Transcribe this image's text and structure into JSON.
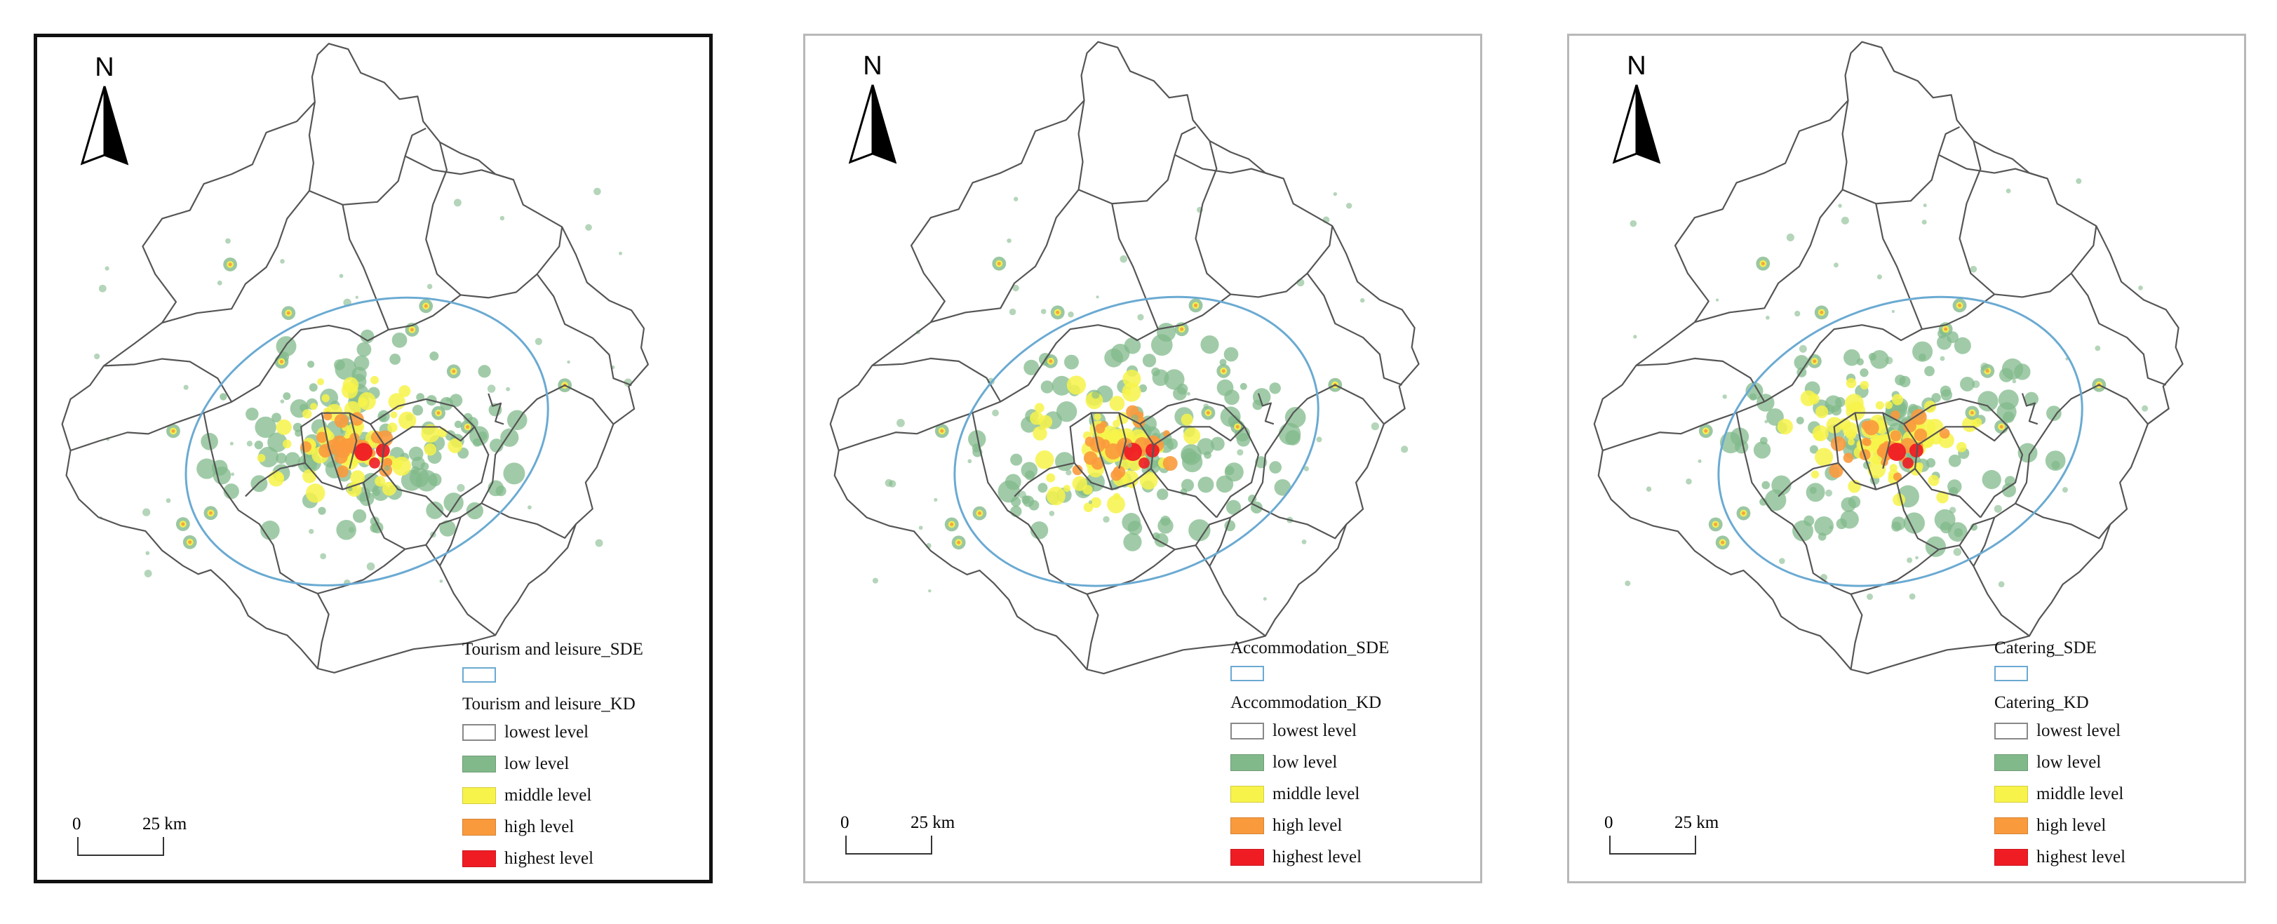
{
  "north_label": "N",
  "scale": {
    "zero": "0",
    "distance": "25 km"
  },
  "colors": {
    "boundary": "#555555",
    "sde_ellipse": "#6aaad2",
    "lowest": "#ffffff",
    "low": "#82b98b",
    "middle": "#f7f34a",
    "high": "#f99a3d",
    "highest": "#ef1c24"
  },
  "panels": [
    {
      "sde_label": "Tourism and leisure_SDE",
      "kd_label": "Tourism and leisure_KD",
      "levels": [
        "lowest level",
        "low level",
        "middle level",
        "high level",
        "highest level"
      ]
    },
    {
      "sde_label": "Accommodation_SDE",
      "kd_label": "Accommodation_KD",
      "levels": [
        "lowest level",
        "low level",
        "middle level",
        "high level",
        "highest level"
      ]
    },
    {
      "sde_label": "Catering_SDE",
      "kd_label": "Catering_KD",
      "levels": [
        "lowest level",
        "low level",
        "middle level",
        "high level",
        "highest level"
      ]
    }
  ]
}
